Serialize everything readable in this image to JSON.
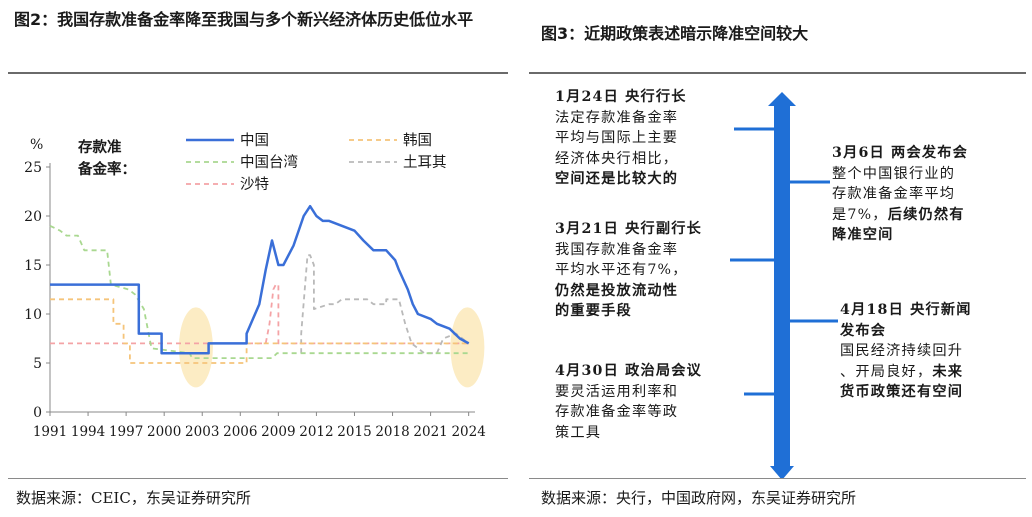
{
  "left": {
    "title": "图2：我国存款准备金率降至我国与多个新兴经济体历史低位水平",
    "source": "数据来源：CEIC，东吴证券研究所"
  },
  "right": {
    "title": "图3：近期政策表述暗示降准空间较大",
    "source": "数据来源：央行，中国政府网，东吴证券研究所",
    "annotations": [
      {
        "head": "1月24日 央行行长",
        "body": [
          "法定存款准备金率",
          "平均与国际上主要",
          "经济体央行相比，"
        ],
        "bold_tail": [
          "空间还是比较大的"
        ]
      },
      {
        "head": "3月6日 两会发布会",
        "body": [
          "整个中国银行业的",
          "存款准备金率平均",
          "是7%，"
        ],
        "bold_tail": [
          "后续仍然有",
          "降准空间"
        ]
      },
      {
        "head": "3月21日 央行副行长",
        "body": [
          "我国存款准备金率",
          "平均水平还有7%，"
        ],
        "bold_tail": [
          "仍然是投放流动性",
          "的重要手段"
        ]
      },
      {
        "head": "4月18日  央行新闻",
        "head2": "发布会",
        "body": [
          "国民经济持续回升",
          "、开局良好，"
        ],
        "bold_tail": [
          "未来",
          "货币政策还有空间"
        ]
      },
      {
        "head": "4月30日 政治局会议",
        "body": [
          "要灵活运用利率和",
          "存款准备金率等政",
          "策工具"
        ],
        "bold_tail": []
      }
    ],
    "timeline_color": "#1f6fd6"
  },
  "chart_data": {
    "type": "line",
    "ylabel": "%",
    "legend_title": "存款准备金率：",
    "ylim": [
      0,
      25
    ],
    "yticks": [
      0,
      5,
      10,
      15,
      20,
      25
    ],
    "xlim": [
      1991,
      2024.5
    ],
    "xticks": [
      1991,
      1994,
      1997,
      2000,
      2003,
      2006,
      2009,
      2012,
      2015,
      2018,
      2021,
      2024
    ],
    "grid": false,
    "legend_position": "top",
    "highlights": [
      {
        "x": 2002.5,
        "y": 7
      },
      {
        "x": 2023.9,
        "y": 7
      }
    ],
    "series": [
      {
        "name": "中国",
        "color": "#3a6fd8",
        "dash": "solid",
        "width": 2.5,
        "x": [
          1991,
          1998,
          1998,
          1999.8,
          1999.8,
          2003.5,
          2003.5,
          2006.5,
          2006.5,
          2007.5,
          2008.0,
          2008.5,
          2009.0,
          2009.4,
          2010.2,
          2011.0,
          2011.5,
          2012.0,
          2012.5,
          2013,
          2015.0,
          2015.7,
          2016.5,
          2017.5,
          2018.2,
          2018.5,
          2019.2,
          2019.6,
          2020.0,
          2021.0,
          2021.5,
          2022.5,
          2023.3,
          2024
        ],
        "y": [
          13,
          13,
          8,
          8,
          6,
          6,
          7,
          7,
          8,
          11,
          14.5,
          17.5,
          15,
          15,
          17,
          20,
          21,
          20,
          19.5,
          19.5,
          18.5,
          17.5,
          16.5,
          16.5,
          15.5,
          14.5,
          12.5,
          11,
          10,
          9.5,
          9,
          8.5,
          7.5,
          7
        ]
      },
      {
        "name": "韩国",
        "color": "#f5c47a",
        "dash": "5,4",
        "width": 1.8,
        "x": [
          1991,
          1996.0,
          1996.0,
          1996.8,
          1996.8,
          1997.3,
          1997.3,
          2006.5,
          2006.5,
          2024
        ],
        "y": [
          11.5,
          11.5,
          9,
          9,
          7,
          7,
          5,
          5,
          7,
          7
        ]
      },
      {
        "name": "中国台湾",
        "color": "#a9d890",
        "dash": "5,4",
        "width": 1.8,
        "x": [
          1991,
          1991.8,
          1992.3,
          1993.2,
          1993.7,
          1995.5,
          1995.8,
          1997.2,
          1997.7,
          1998.4,
          1999.0,
          2002.0,
          2002.2,
          2008.5,
          2008.9,
          2022.0,
          2023.0,
          2024
        ],
        "y": [
          19,
          18.5,
          18,
          18,
          16.5,
          16.5,
          13,
          12.5,
          12,
          10.5,
          6.5,
          6,
          5.5,
          5.5,
          6,
          6,
          6,
          6
        ]
      },
      {
        "name": "土耳其",
        "color": "#b9b9b9",
        "dash": "5,4",
        "width": 1.8,
        "x": [
          2010.8,
          2010.8,
          2011.3,
          2011.5,
          2011.8,
          2011.8,
          2013.0,
          2013.5,
          2014.0,
          2016.0,
          2016.5,
          2017.5,
          2017.5,
          2018.5,
          2019.0,
          2019.5,
          2020.0,
          2020.5,
          2021.5,
          2022.0,
          2023.0,
          2023.5,
          2024
        ],
        "y": [
          6,
          8,
          16,
          16,
          15,
          10.5,
          11,
          11,
          11.5,
          11.5,
          11,
          11,
          11.5,
          11.5,
          9,
          7,
          6.5,
          6,
          6,
          7.5,
          8,
          7.5,
          7
        ]
      },
      {
        "name": "沙特",
        "color": "#f4a3a6",
        "dash": "5,4",
        "width": 1.8,
        "x": [
          1991,
          2008.0,
          2008.3,
          2008.6,
          2008.8,
          2009.0,
          2009.0,
          2024
        ],
        "y": [
          7,
          7,
          9,
          12.5,
          13,
          13,
          7,
          7
        ]
      }
    ]
  }
}
